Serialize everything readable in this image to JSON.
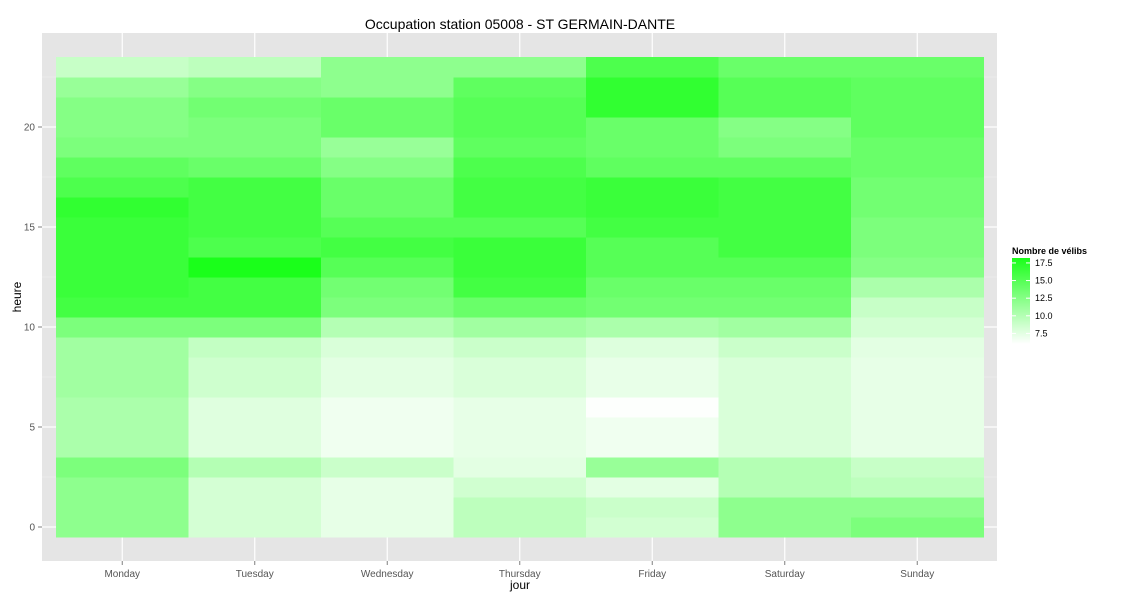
{
  "chart_data": {
    "type": "heatmap",
    "title": "Occupation station 05008 - ST GERMAIN-DANTE",
    "xlabel": "jour",
    "ylabel": "heure",
    "x_categories": [
      "Monday",
      "Tuesday",
      "Wednesday",
      "Thursday",
      "Friday",
      "Saturday",
      "Sunday"
    ],
    "y_range": [
      -0.5,
      23.5
    ],
    "y_ticks": [
      0,
      5,
      10,
      15,
      20
    ],
    "grid": true,
    "legend": {
      "title": "Nombre de vélibs",
      "ticks": [
        17.5,
        15.0,
        12.5,
        10.0,
        7.5
      ],
      "placement": "right",
      "min": 6,
      "max": 18.2,
      "low_color": "#ffffff",
      "high_color": "#1aff1a"
    },
    "values": [
      [
        12.0,
        8.3,
        7.3,
        9.5,
        8.4,
        12.0,
        13.0
      ],
      [
        12.0,
        8.3,
        7.3,
        9.5,
        8.8,
        12.0,
        12.0
      ],
      [
        12.0,
        8.3,
        7.3,
        8.5,
        7.5,
        10.0,
        9.5
      ],
      [
        13.0,
        10.0,
        8.8,
        7.5,
        11.5,
        10.0,
        9.0
      ],
      [
        10.5,
        7.7,
        6.8,
        7.3,
        6.8,
        8.0,
        7.3
      ],
      [
        10.5,
        7.7,
        6.8,
        7.3,
        6.8,
        8.0,
        7.3
      ],
      [
        10.5,
        7.7,
        6.8,
        7.3,
        6.1,
        8.0,
        7.3
      ],
      [
        11.0,
        8.6,
        7.5,
        8.0,
        7.2,
        8.0,
        7.3
      ],
      [
        11.0,
        8.6,
        7.5,
        8.0,
        7.2,
        8.0,
        7.3
      ],
      [
        11.0,
        9.2,
        8.0,
        8.8,
        7.8,
        8.8,
        7.5
      ],
      [
        13.0,
        13.0,
        10.0,
        11.0,
        10.5,
        11.0,
        8.3
      ],
      [
        16.0,
        16.0,
        13.0,
        14.0,
        13.5,
        13.5,
        9.0
      ],
      [
        16.5,
        16.0,
        13.5,
        16.0,
        14.0,
        14.0,
        10.5
      ],
      [
        16.5,
        18.2,
        15.0,
        16.5,
        15.0,
        15.0,
        12.5
      ],
      [
        16.5,
        15.5,
        16.0,
        16.5,
        15.0,
        16.0,
        13.0
      ],
      [
        16.5,
        16.0,
        15.0,
        15.0,
        16.0,
        16.0,
        13.0
      ],
      [
        17.0,
        16.0,
        14.0,
        16.0,
        16.5,
        16.0,
        13.5
      ],
      [
        15.5,
        16.0,
        14.0,
        16.0,
        16.5,
        16.0,
        13.5
      ],
      [
        14.5,
        14.0,
        12.5,
        15.5,
        14.5,
        14.5,
        14.0
      ],
      [
        13.0,
        13.0,
        11.5,
        14.5,
        14.0,
        13.0,
        14.0
      ],
      [
        12.5,
        13.0,
        14.0,
        15.0,
        14.0,
        12.5,
        14.5
      ],
      [
        12.5,
        13.5,
        14.0,
        15.0,
        17.0,
        15.0,
        14.5
      ],
      [
        11.5,
        12.5,
        12.0,
        14.5,
        17.0,
        15.0,
        14.5
      ],
      [
        9.0,
        9.5,
        12.0,
        12.0,
        15.5,
        14.0,
        14.0
      ]
    ]
  }
}
